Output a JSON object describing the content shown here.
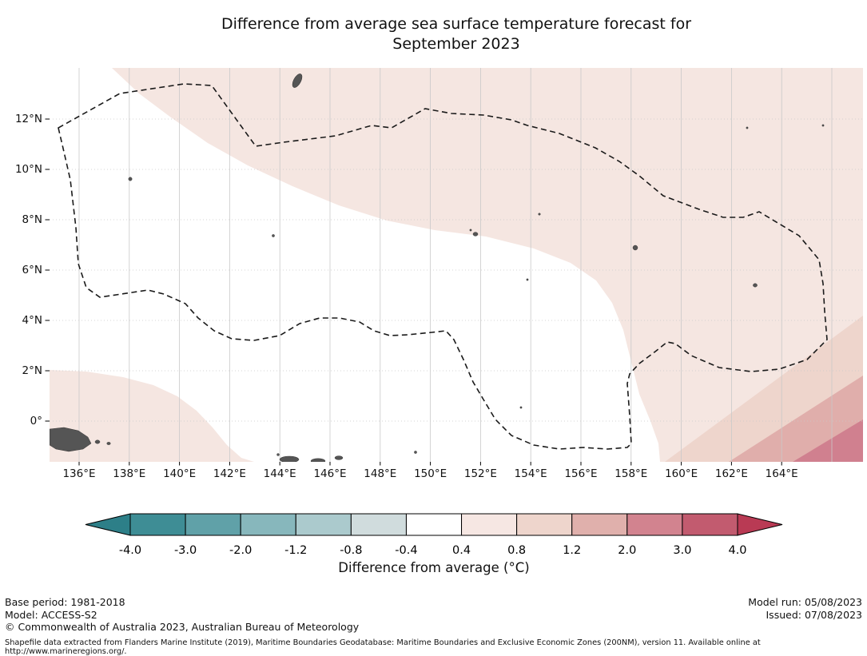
{
  "title": {
    "line1": "Difference from average sea surface temperature forecast for",
    "line2": "September 2023"
  },
  "map": {
    "lat_tick_labels": [
      "12°N",
      "10°N",
      "8°N",
      "6°N",
      "4°N",
      "2°N",
      "0°"
    ],
    "lon_tick_labels": [
      "136°E",
      "138°E",
      "140°E",
      "142°E",
      "144°E",
      "146°E",
      "148°E",
      "150°E",
      "152°E",
      "154°E",
      "156°E",
      "158°E",
      "160°E",
      "162°E",
      "164°E"
    ],
    "region_colors": {
      "sea": "#ffffff",
      "anomaly_light": "#f5e6e1",
      "anomaly_medium": "#eed5cc",
      "anomaly_strong": "#e0aeab",
      "anomaly_rose": "#d0808f",
      "land": "#555555",
      "gridline": "#c9c9c9",
      "boundary": "#1a1a1a"
    }
  },
  "colorbar": {
    "caption": "Difference from average (°C)",
    "tick_labels": [
      "-4.0",
      "-3.0",
      "-2.0",
      "-1.2",
      "-0.8",
      "-0.4",
      "0.4",
      "0.8",
      "1.2",
      "2.0",
      "3.0",
      "4.0"
    ],
    "segments": [
      "#3e8d95",
      "#60a1a8",
      "#87b7bc",
      "#abcacd",
      "#d0dcdd",
      "#ffffff",
      "#f6e7e3",
      "#eed5cc",
      "#e0b0ac",
      "#d2838f",
      "#c25b6f"
    ],
    "arrow_left": "#2d7f88",
    "arrow_right": "#b93a54"
  },
  "footer": {
    "base_period": "Base period: 1981-2018",
    "model": "Model: ACCESS-S2",
    "copyright": "© Commonwealth of Australia 2023, Australian Bureau of Meteorology",
    "model_run": "Model run: 05/08/2023",
    "issued": "Issued: 07/08/2023",
    "source_note": "Shapefile data extracted from Flanders Marine Institute (2019), Maritime Boundaries Geodatabase: Maritime Boundaries and Exclusive Economic Zones (200NM), version 11. Available online at http://www.marineregions.org/."
  }
}
